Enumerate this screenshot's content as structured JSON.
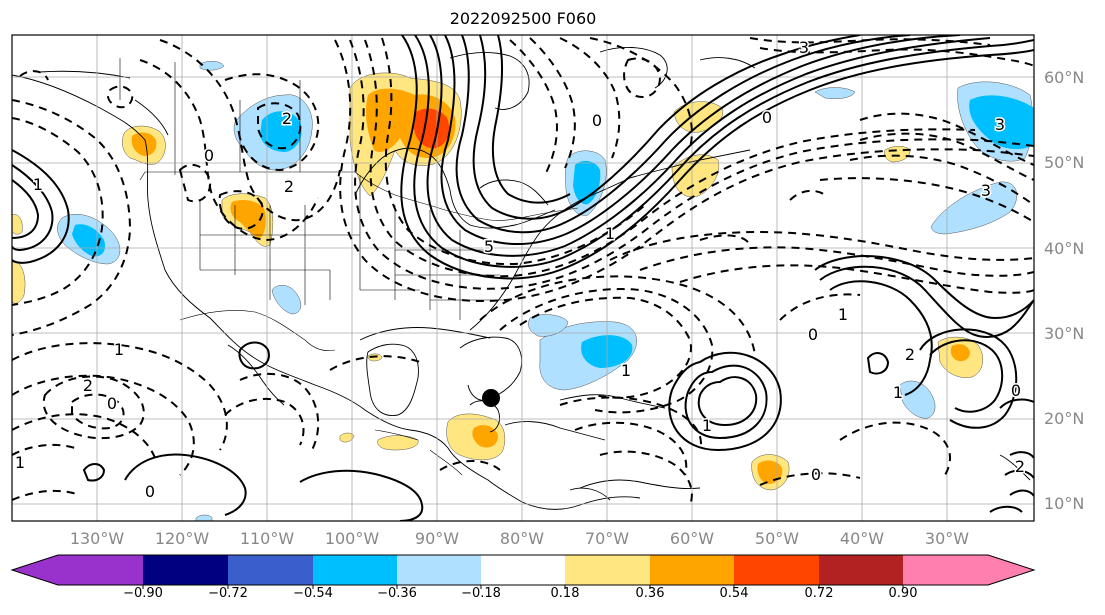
{
  "title": "2022092500 F060",
  "lat_labels": [
    "60°N",
    "50°N",
    "40°N",
    "30°N",
    "20°N",
    "10°N"
  ],
  "lon_labels": [
    "130°W",
    "120°W",
    "110°W",
    "100°W",
    "90°W",
    "80°W",
    "70°W",
    "60°W",
    "50°W",
    "40°W",
    "30°W"
  ],
  "colorbar": {
    "ticks": [
      "−0.90",
      "−0.72",
      "−0.54",
      "−0.36",
      "−0.18",
      "0.18",
      "0.36",
      "0.54",
      "0.72",
      "0.90"
    ],
    "colors": [
      "#9932cc",
      "#000080",
      "#3a5fcd",
      "#00bfff",
      "#b0e0ff",
      "#ffffff",
      "#ffe680",
      "#ffa500",
      "#ff4500",
      "#b22222",
      "#ff7fae"
    ]
  },
  "contour_labels": [
    "3",
    "0",
    "0",
    "5",
    "1",
    "2",
    "1",
    "0",
    "2",
    "1",
    "0",
    "3",
    "0",
    "1",
    "2",
    "1",
    "0",
    "1",
    "0",
    "2",
    "1",
    "1",
    "0",
    "2",
    "3"
  ]
}
